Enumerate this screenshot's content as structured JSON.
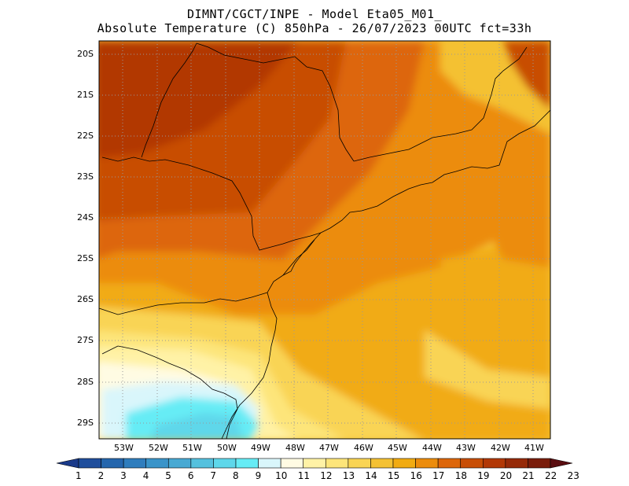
{
  "title": {
    "line1": "DIMNT/CGCT/INPE -  Model Eta05_M01_",
    "line2": "Absolute Temperature (C) 850hPa -  26/07/2023 00UTC fct=33h"
  },
  "map": {
    "lat_labels": [
      "20S",
      "21S",
      "22S",
      "23S",
      "24S",
      "25S",
      "26S",
      "27S",
      "28S",
      "29S"
    ],
    "lon_labels": [
      "53W",
      "52W",
      "51W",
      "50W",
      "49W",
      "48W",
      "47W",
      "46W",
      "45W",
      "44W",
      "43W",
      "42W",
      "41W"
    ],
    "lat_range": [
      -19.5,
      -29.4
    ],
    "lon_range": [
      -53.7,
      -40.6
    ],
    "grid": true
  },
  "colorbar": {
    "labels": [
      "1",
      "2",
      "3",
      "4",
      "5",
      "6",
      "7",
      "8",
      "9",
      "10",
      "11",
      "12",
      "13",
      "14",
      "15",
      "16",
      "17",
      "18",
      "19",
      "20",
      "21",
      "22",
      "23"
    ],
    "colors": [
      "#1a3a8a",
      "#1f4e9c",
      "#2566ad",
      "#2f7dbd",
      "#3a94c9",
      "#48a9d3",
      "#55c1de",
      "#5ed7ea",
      "#66ecf5",
      "#d9f6fb",
      "#fffbe3",
      "#fff2a6",
      "#fde57a",
      "#f9d454",
      "#f4c133",
      "#f1ab12",
      "#ec8c0c",
      "#dd660a",
      "#c84e06",
      "#b23806",
      "#962a08",
      "#7a1d0b",
      "#5a0d10"
    ]
  }
}
